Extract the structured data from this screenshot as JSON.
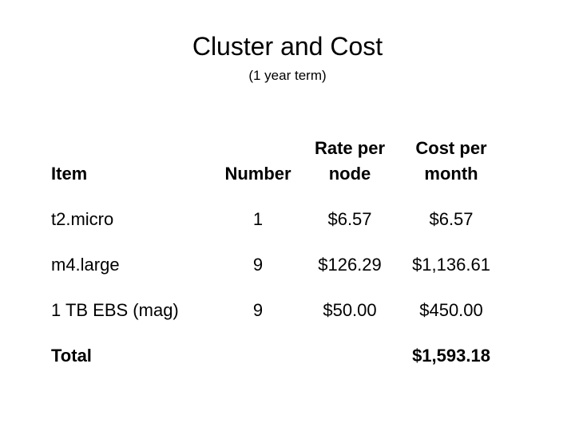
{
  "slide": {
    "title": "Cluster and Cost",
    "subtitle": "(1 year term)"
  },
  "table": {
    "headers": {
      "item": "Item",
      "number": "Number",
      "rate": "Rate per\nnode",
      "cost": "Cost per\nmonth"
    },
    "rows": [
      {
        "item": "t2.micro",
        "number": "1",
        "rate": "$6.57",
        "cost": "$6.57"
      },
      {
        "item": "m4.large",
        "number": "9",
        "rate": "$126.29",
        "cost": "$1,136.61"
      },
      {
        "item": "1 TB EBS (mag)",
        "number": "9",
        "rate": "$50.00",
        "cost": "$450.00"
      }
    ],
    "total": {
      "label": "Total",
      "number": "",
      "rate": "",
      "cost": "$1,593.18"
    }
  }
}
